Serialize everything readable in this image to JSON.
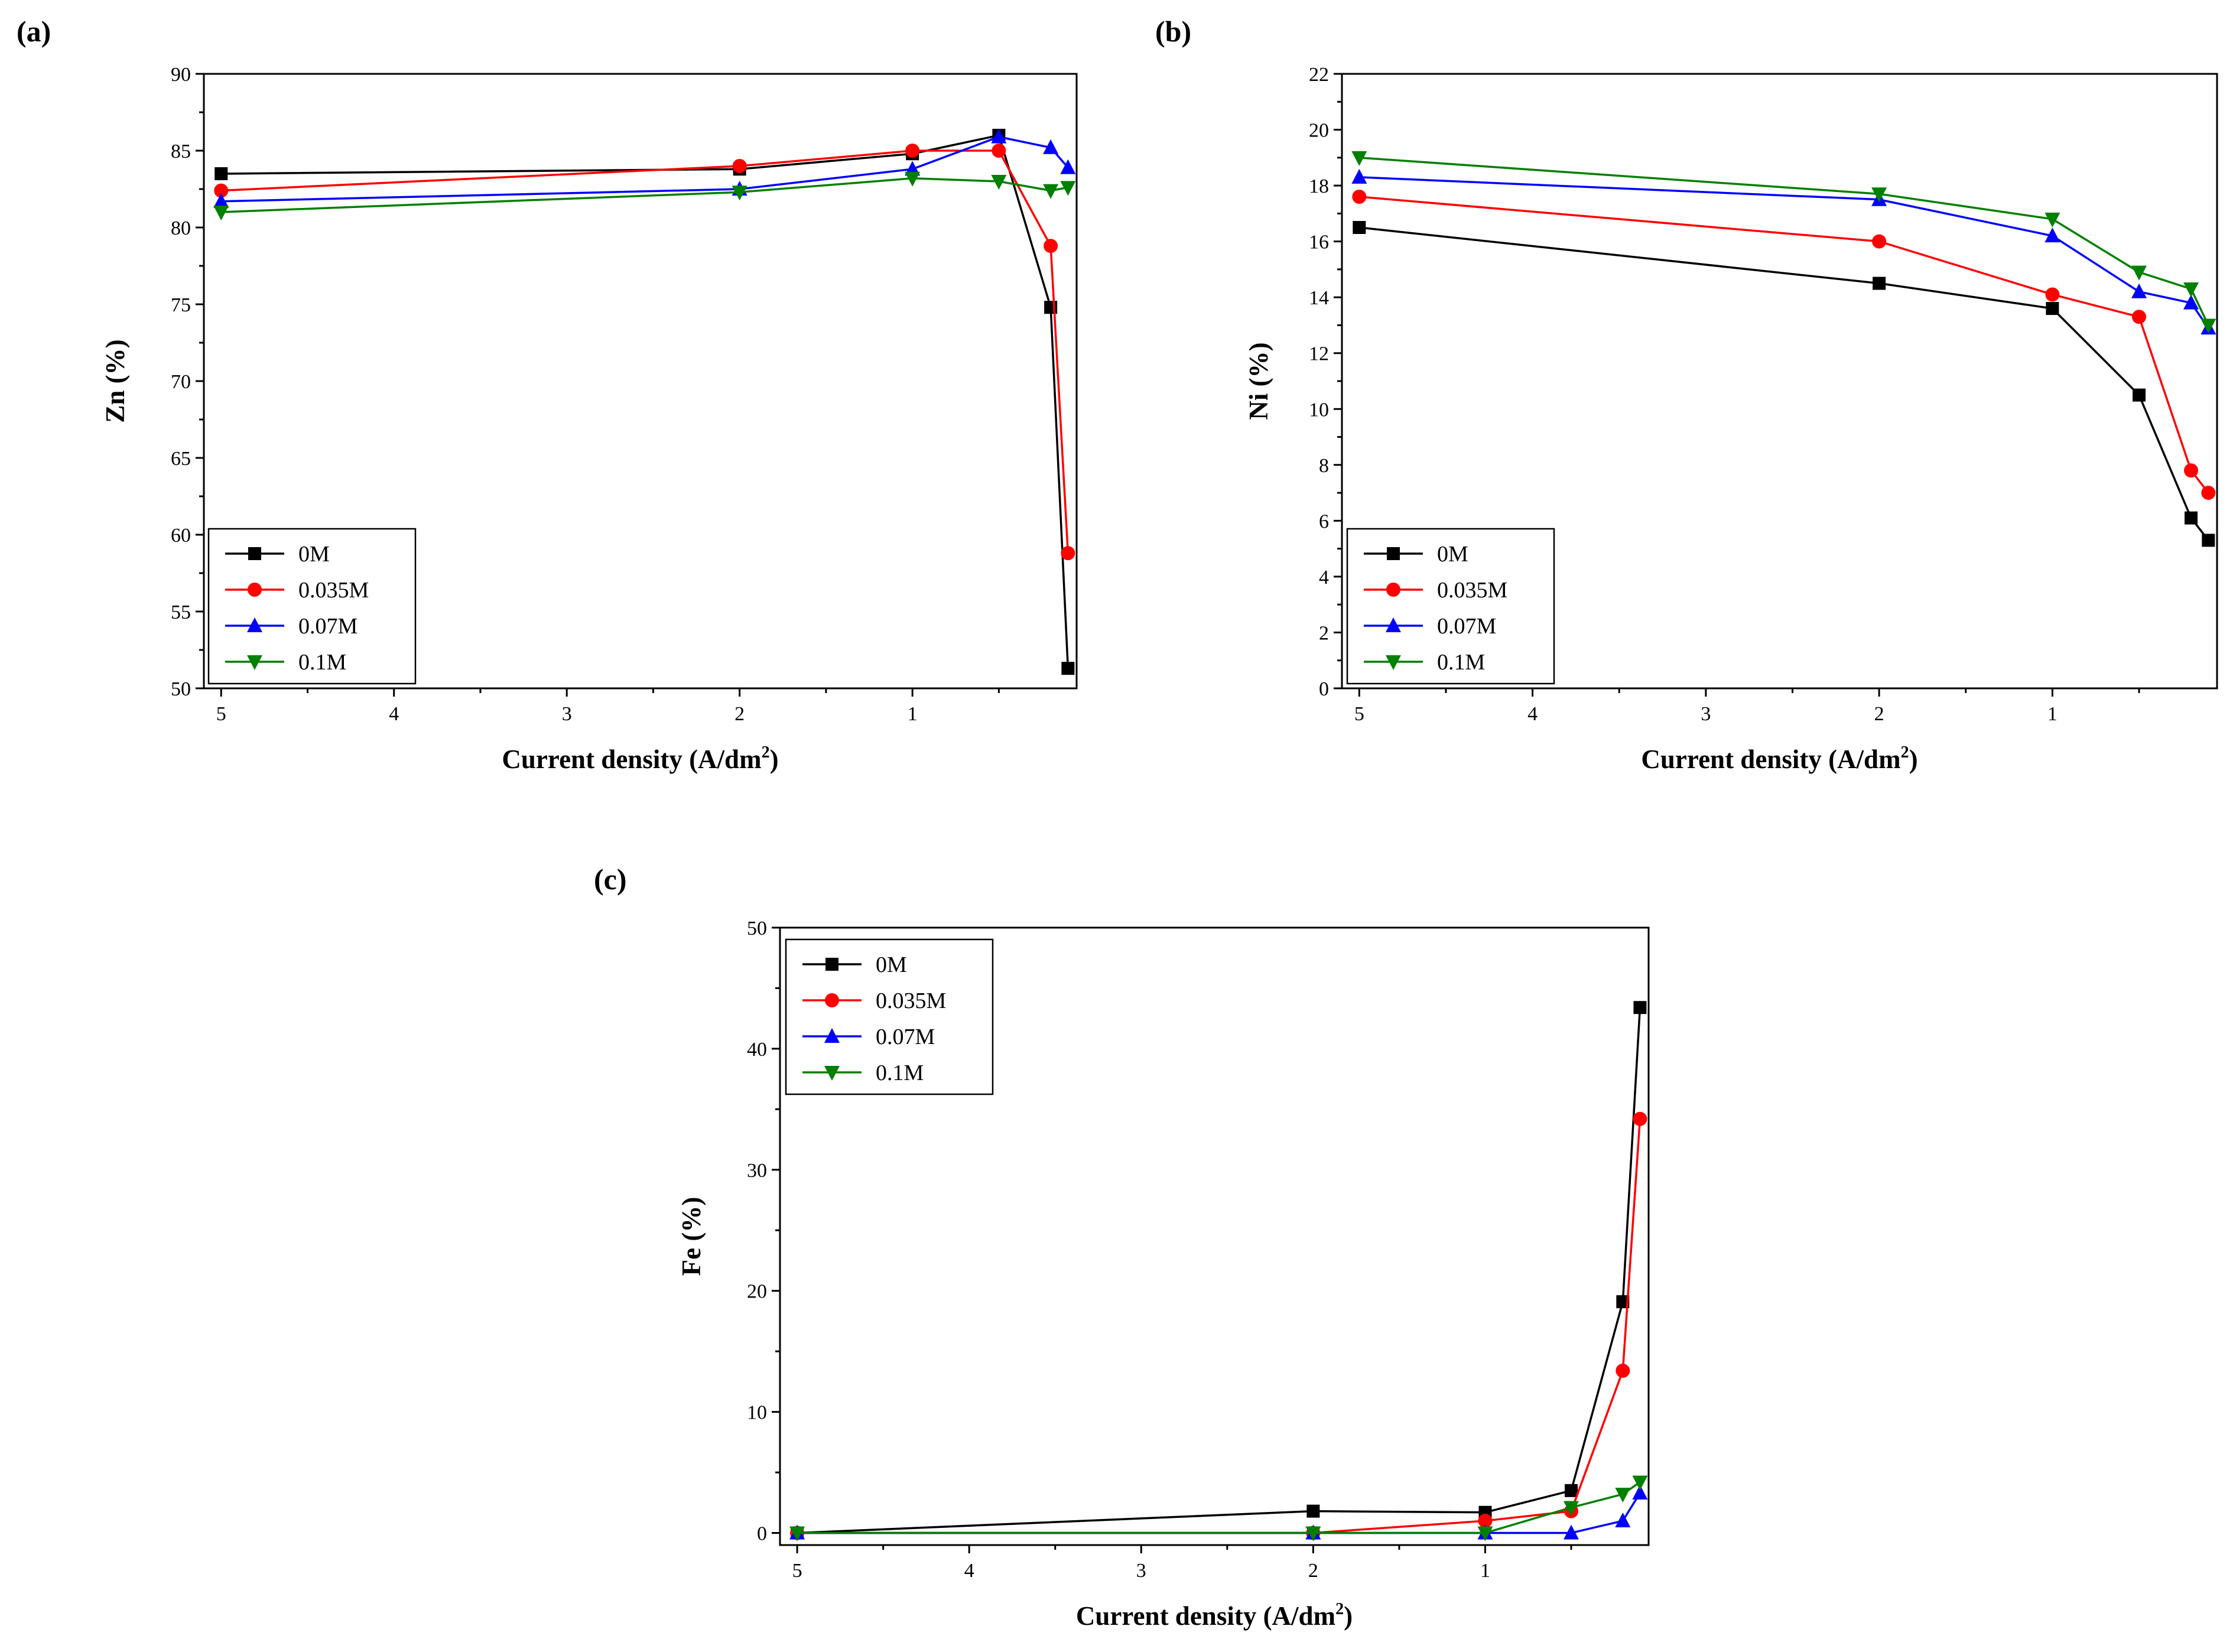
{
  "chart_data": [
    {
      "type": "line",
      "panel_label": "(a)",
      "xlabel": "Current density (A/dm",
      "xlabel_sup": "2",
      "xlabel_close": ")",
      "ylabel": "Zn (%)",
      "x_ticks": [
        5,
        4,
        3,
        2,
        1
      ],
      "x_tick_labels": [
        "5",
        "4",
        "3",
        "2",
        "1"
      ],
      "xlim": [
        5.1,
        0.05
      ],
      "ylim": [
        50,
        90
      ],
      "y_ticks": [
        50,
        55,
        60,
        65,
        70,
        75,
        80,
        85,
        90
      ],
      "y_tick_labels": [
        "50",
        "55",
        "60",
        "65",
        "70",
        "75",
        "80",
        "85",
        "90"
      ],
      "x": [
        5,
        2,
        1,
        0.5,
        0.2,
        0.1
      ],
      "legend_position": "bottom-left",
      "series": [
        {
          "name": "0M",
          "marker": "square",
          "color": "#000000",
          "values": [
            83.5,
            83.8,
            84.8,
            86.0,
            74.8,
            51.3
          ]
        },
        {
          "name": "0.035M",
          "marker": "circle",
          "color": "#ff0000",
          "values": [
            82.4,
            84.0,
            85.0,
            85.0,
            78.8,
            58.8
          ]
        },
        {
          "name": "0.07M",
          "marker": "triangle-up",
          "color": "#0000ff",
          "values": [
            81.7,
            82.5,
            83.8,
            85.9,
            85.2,
            83.9
          ]
        },
        {
          "name": "0.1M",
          "marker": "triangle-down",
          "color": "#008000",
          "values": [
            81.0,
            82.3,
            83.2,
            83.0,
            82.4,
            82.6
          ]
        }
      ]
    },
    {
      "type": "line",
      "panel_label": "(b)",
      "xlabel": "Current density (A/dm",
      "xlabel_sup": "2",
      "xlabel_close": ")",
      "ylabel": "Ni (%)",
      "x_ticks": [
        5,
        4,
        3,
        2,
        1
      ],
      "x_tick_labels": [
        "5",
        "4",
        "3",
        "2",
        "1"
      ],
      "xlim": [
        5.1,
        0.05
      ],
      "ylim": [
        0,
        22
      ],
      "y_ticks": [
        0,
        2,
        4,
        6,
        8,
        10,
        12,
        14,
        16,
        18,
        20,
        22
      ],
      "y_tick_labels": [
        "0",
        "2",
        "4",
        "6",
        "8",
        "10",
        "12",
        "14",
        "16",
        "18",
        "20",
        "22"
      ],
      "x": [
        5,
        2,
        1,
        0.5,
        0.2,
        0.1
      ],
      "legend_position": "bottom-left",
      "series": [
        {
          "name": "0M",
          "marker": "square",
          "color": "#000000",
          "values": [
            16.5,
            14.5,
            13.6,
            10.5,
            6.1,
            5.3
          ]
        },
        {
          "name": "0.035M",
          "marker": "circle",
          "color": "#ff0000",
          "values": [
            17.6,
            16.0,
            14.1,
            13.3,
            7.8,
            7.0
          ]
        },
        {
          "name": "0.07M",
          "marker": "triangle-up",
          "color": "#0000ff",
          "values": [
            18.3,
            17.5,
            16.2,
            14.2,
            13.8,
            12.9
          ]
        },
        {
          "name": "0.1M",
          "marker": "triangle-down",
          "color": "#008000",
          "values": [
            19.0,
            17.7,
            16.8,
            14.9,
            14.3,
            13.0
          ]
        }
      ]
    },
    {
      "type": "line",
      "panel_label": "(c)",
      "xlabel": "Current density (A/dm",
      "xlabel_sup": "2",
      "xlabel_close": ")",
      "ylabel": "Fe (%)",
      "x_ticks": [
        5,
        4,
        3,
        2,
        1
      ],
      "x_tick_labels": [
        "5",
        "4",
        "3",
        "2",
        "1"
      ],
      "xlim": [
        5.1,
        0.05
      ],
      "ylim": [
        -1,
        50
      ],
      "y_ticks": [
        0,
        10,
        20,
        30,
        40,
        50
      ],
      "y_tick_labels": [
        "0",
        "10",
        "20",
        "30",
        "40",
        "50"
      ],
      "x": [
        5,
        2,
        1,
        0.5,
        0.2,
        0.1
      ],
      "legend_position": "top-left",
      "series": [
        {
          "name": "0M",
          "marker": "square",
          "color": "#000000",
          "values": [
            0.0,
            1.8,
            1.7,
            3.5,
            19.1,
            43.4
          ]
        },
        {
          "name": "0.035M",
          "marker": "circle",
          "color": "#ff0000",
          "values": [
            0.0,
            0.0,
            1.0,
            1.8,
            13.4,
            34.2
          ]
        },
        {
          "name": "0.07M",
          "marker": "triangle-up",
          "color": "#0000ff",
          "values": [
            0.0,
            0.0,
            0.0,
            0.0,
            1.0,
            3.3
          ]
        },
        {
          "name": "0.1M",
          "marker": "triangle-down",
          "color": "#008000",
          "values": [
            0.0,
            0.0,
            0.0,
            2.1,
            3.2,
            4.2
          ]
        }
      ]
    }
  ]
}
